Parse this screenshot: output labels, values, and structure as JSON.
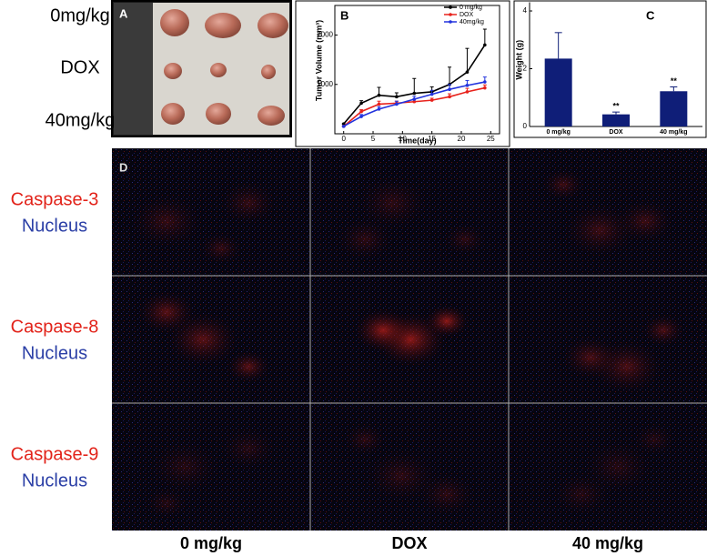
{
  "panel_a": {
    "label": "A",
    "rows": [
      "0mg/kg",
      "DOX",
      "40mg/kg"
    ]
  },
  "chart_data": [
    {
      "type": "line",
      "label": "B",
      "xlabel": "Time(day)",
      "ylabel": "Tumor Volume (mm³)",
      "x": [
        0,
        3,
        6,
        9,
        12,
        15,
        18,
        21,
        24
      ],
      "series": [
        {
          "name": "0 mg/kg",
          "color": "#000000",
          "values": [
            200,
            620,
            780,
            750,
            820,
            850,
            1000,
            1250,
            1800
          ],
          "errors": [
            0,
            50,
            160,
            80,
            300,
            100,
            350,
            480,
            320
          ]
        },
        {
          "name": "DOX",
          "color": "#e8221c",
          "values": [
            150,
            450,
            600,
            620,
            650,
            680,
            750,
            850,
            930
          ],
          "errors": [
            0,
            40,
            60,
            40,
            50,
            40,
            60,
            70,
            60
          ]
        },
        {
          "name": "40mg/kg",
          "color": "#2233dd",
          "values": [
            150,
            350,
            500,
            600,
            700,
            800,
            900,
            980,
            1050
          ],
          "errors": [
            0,
            40,
            50,
            60,
            60,
            80,
            100,
            100,
            100
          ]
        }
      ],
      "xlim": [
        -1.5,
        26.5
      ],
      "xticks": [
        0,
        5,
        10,
        15,
        20,
        25
      ],
      "ylim": [
        0,
        2600
      ],
      "yticks": [
        1000,
        2000
      ],
      "legend": "upper right"
    },
    {
      "type": "bar",
      "label": "C",
      "ylabel": "Weight (g)",
      "categories": [
        "0 mg/kg",
        "DOX",
        "40 mg/kg"
      ],
      "values": [
        2.35,
        0.42,
        1.22
      ],
      "errors": [
        0.9,
        0.08,
        0.15
      ],
      "annotations": [
        null,
        "**",
        "**"
      ],
      "color": "#0f1e78",
      "ylim": [
        0,
        4.3
      ],
      "yticks": [
        0,
        2,
        4
      ]
    }
  ],
  "panel_d": {
    "label": "D",
    "rows": [
      {
        "marker": "Caspase-3",
        "stain": "Nucleus"
      },
      {
        "marker": "Caspase-8",
        "stain": "Nucleus"
      },
      {
        "marker": "Caspase-9",
        "stain": "Nucleus"
      }
    ],
    "columns": [
      "0 mg/kg",
      "DOX",
      "40 mg/kg"
    ]
  }
}
